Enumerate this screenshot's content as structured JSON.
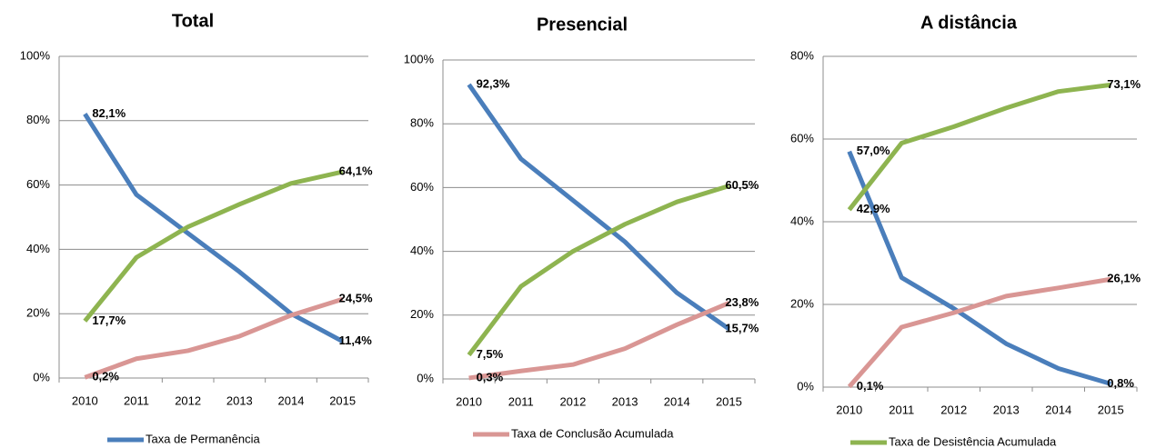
{
  "chart_data": [
    {
      "type": "line",
      "title": "Total",
      "categories": [
        "2010",
        "2011",
        "2012",
        "2013",
        "2014",
        "2015"
      ],
      "ylim": [
        0,
        100
      ],
      "yticks": [
        {
          "value": 0,
          "label": "0%"
        },
        {
          "value": 20,
          "label": "20%"
        },
        {
          "value": 40,
          "label": "40%"
        },
        {
          "value": 60,
          "label": "60%"
        },
        {
          "value": 80,
          "label": "80%"
        },
        {
          "value": 100,
          "label": "100%"
        }
      ],
      "grid": true,
      "series": [
        {
          "name": "Taxa de Permanência",
          "color": "#4a7ebb",
          "values": [
            82.1,
            57,
            45,
            33,
            20,
            11.4
          ],
          "value_labels": [
            "82,1%",
            null,
            null,
            null,
            null,
            "11,4%"
          ]
        },
        {
          "color": "#d99694",
          "values": [
            0.2,
            6,
            8.5,
            13,
            19.5,
            24.5
          ],
          "value_labels": [
            "0,2%",
            null,
            null,
            null,
            null,
            "24,5%"
          ]
        },
        {
          "color": "#8eb450",
          "values": [
            17.7,
            37.5,
            47,
            54,
            60.5,
            64.1
          ],
          "value_labels": [
            "17,7%",
            null,
            null,
            null,
            null,
            "64,1%"
          ]
        }
      ]
    },
    {
      "type": "line",
      "title": "Presencial",
      "categories": [
        "2010",
        "2011",
        "2012",
        "2013",
        "2014",
        "2015"
      ],
      "ylim": [
        0,
        100
      ],
      "yticks": [
        {
          "value": 0,
          "label": "0%"
        },
        {
          "value": 20,
          "label": "20%"
        },
        {
          "value": 40,
          "label": "40%"
        },
        {
          "value": 60,
          "label": "60%"
        },
        {
          "value": 80,
          "label": "80%"
        },
        {
          "value": 100,
          "label": "100%"
        }
      ],
      "grid": true,
      "series": [
        {
          "color": "#4a7ebb",
          "values": [
            92.3,
            69,
            56,
            43,
            27,
            15.7
          ],
          "value_labels": [
            "92,3%",
            null,
            null,
            null,
            null,
            "15,7%"
          ]
        },
        {
          "name": "Taxa de Conclusão Acumulada",
          "color": "#d99694",
          "values": [
            0.3,
            2.5,
            4.5,
            9.5,
            17,
            23.8
          ],
          "value_labels": [
            "0,3%",
            null,
            null,
            null,
            null,
            "23,8%"
          ]
        },
        {
          "color": "#8eb450",
          "values": [
            7.5,
            29,
            40,
            48.5,
            55.5,
            60.5
          ],
          "value_labels": [
            "7,5%",
            null,
            null,
            null,
            null,
            "60,5%"
          ]
        }
      ]
    },
    {
      "type": "line",
      "title": "A distância",
      "categories": [
        "2010",
        "2011",
        "2012",
        "2013",
        "2014",
        "2015"
      ],
      "ylim": [
        0,
        80
      ],
      "yticks": [
        {
          "value": 0,
          "label": "0%"
        },
        {
          "value": 20,
          "label": "20%"
        },
        {
          "value": 40,
          "label": "40%"
        },
        {
          "value": 60,
          "label": "60%"
        },
        {
          "value": 80,
          "label": "80%"
        }
      ],
      "grid": true,
      "series": [
        {
          "color": "#4a7ebb",
          "values": [
            57.0,
            26.5,
            19,
            10.5,
            4.5,
            0.8
          ],
          "value_labels": [
            "57,0%",
            null,
            null,
            null,
            null,
            "0,8%"
          ]
        },
        {
          "color": "#d99694",
          "values": [
            0.1,
            14.5,
            18,
            22,
            24,
            26.1
          ],
          "value_labels": [
            "0,1%",
            null,
            null,
            null,
            null,
            "26,1%"
          ]
        },
        {
          "name": "Taxa de Desistência Acumulada",
          "color": "#8eb450",
          "values": [
            42.9,
            59,
            63,
            67.5,
            71.5,
            73.1
          ],
          "value_labels": [
            "42,9%",
            null,
            null,
            null,
            null,
            "73,1%"
          ]
        }
      ]
    }
  ]
}
